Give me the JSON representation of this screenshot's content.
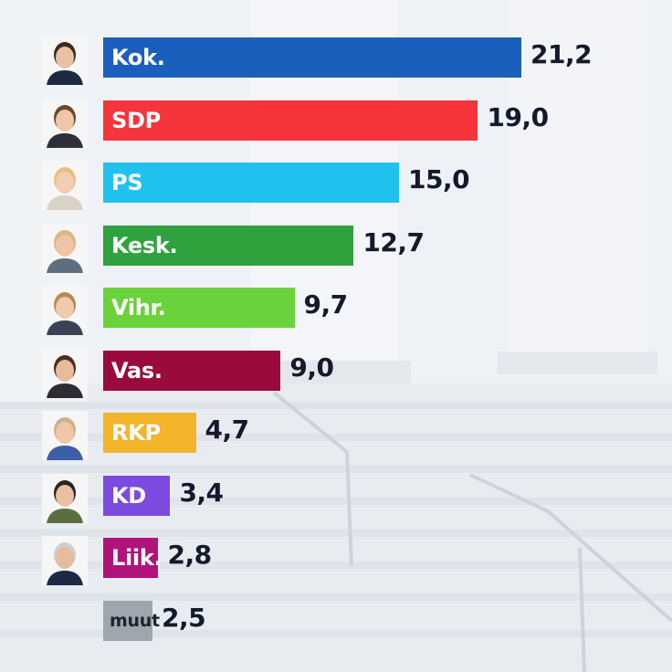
{
  "chart_data": {
    "type": "bar",
    "orientation": "horizontal",
    "categories": [
      "Kok.",
      "SDP",
      "PS",
      "Kesk.",
      "Vihr.",
      "Vas.",
      "RKP",
      "KD",
      "Liik.",
      "muut"
    ],
    "values": [
      21.2,
      19.0,
      15.0,
      12.7,
      9.7,
      9.0,
      4.7,
      3.4,
      2.8,
      2.5
    ],
    "value_labels": [
      "21,2",
      "19,0",
      "15,0",
      "12,7",
      "9,7",
      "9,0",
      "4,7",
      "3,4",
      "2,8",
      "2,5"
    ],
    "colors": [
      "#1b5fbd",
      "#f5343c",
      "#21c1ee",
      "#2fa23d",
      "#6ad23a",
      "#9a0a3c",
      "#f2b52b",
      "#7b4be0",
      "#b0147a",
      "#9ea7ae"
    ],
    "has_portrait": [
      true,
      true,
      true,
      true,
      true,
      true,
      true,
      true,
      true,
      false
    ],
    "xlim": [
      0,
      21.2
    ],
    "grid": false,
    "legend": "none"
  },
  "colors": {
    "value_text": "#121a2b",
    "label_text": "#ffffff",
    "muut_label_text": "#1d2330",
    "background": "#e9edf2"
  }
}
